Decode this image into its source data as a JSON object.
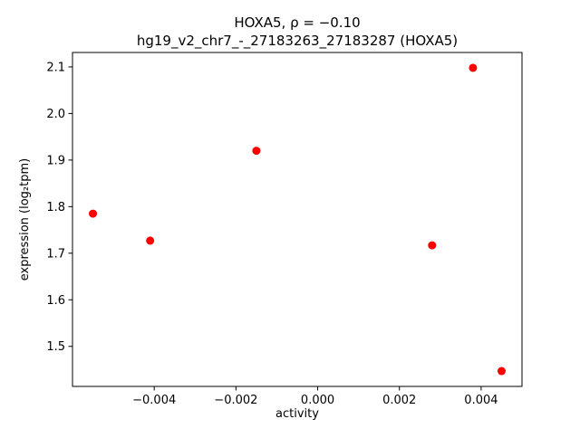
{
  "chart_data": {
    "type": "scatter",
    "title_line1": "HOXA5, ρ = −0.10",
    "title_line2": "hg19_v2_chr7_-_27183263_27183287 (HOXA5)",
    "xlabel": "activity",
    "ylabel": "expression (log₂tpm)",
    "xlim": [
      -0.006,
      0.005
    ],
    "ylim": [
      1.414,
      2.131
    ],
    "xticks": {
      "values": [
        -0.004,
        -0.002,
        0.0,
        0.002,
        0.004
      ],
      "labels": [
        "−0.004",
        "−0.002",
        "0.000",
        "0.002",
        "0.004"
      ]
    },
    "yticks": {
      "values": [
        1.5,
        1.6,
        1.7,
        1.8,
        1.9,
        2.0,
        2.1
      ],
      "labels": [
        "1.5",
        "1.6",
        "1.7",
        "1.8",
        "1.9",
        "2.0",
        "2.1"
      ]
    },
    "marker_color": "#ff0000",
    "marker_radius": 4.5,
    "grid": false,
    "legend": "none",
    "points": [
      {
        "x": -0.0055,
        "y": 1.785
      },
      {
        "x": -0.0041,
        "y": 1.727
      },
      {
        "x": -0.0015,
        "y": 1.92
      },
      {
        "x": 0.0028,
        "y": 1.717
      },
      {
        "x": 0.0038,
        "y": 2.098
      },
      {
        "x": 0.0045,
        "y": 1.447
      }
    ]
  }
}
